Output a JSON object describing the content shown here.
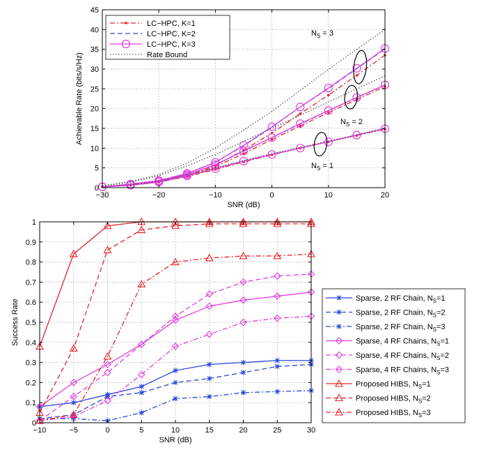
{
  "chart_data": [
    {
      "type": "line",
      "xlabel": "SNR (dB)",
      "ylabel": "Achievable Rate (bits/s/Hz)",
      "xlim": [
        -30,
        20
      ],
      "ylim": [
        0,
        45
      ],
      "xticks": [
        -30,
        -20,
        -10,
        0,
        10,
        20
      ],
      "yticks": [
        0,
        5,
        10,
        15,
        20,
        25,
        30,
        35,
        40,
        45
      ],
      "grid": true,
      "legend_position": "top-left",
      "annotations": [
        {
          "base": "N",
          "sub": "S",
          "rest": " = 3"
        },
        {
          "base": "N",
          "sub": "S",
          "rest": " = 2"
        },
        {
          "base": "N",
          "sub": "S",
          "rest": " = 1"
        }
      ],
      "x": [
        -30,
        -25,
        -20,
        -15,
        -10,
        -5,
        0,
        5,
        10,
        15,
        20
      ],
      "series": [
        {
          "name": "LC−HPC, K=1",
          "color": "#e8202a",
          "dash": "7,3,2,3",
          "marker": "dot",
          "group": "Ns1",
          "values": [
            0.2,
            0.6,
            1.4,
            2.8,
            4.6,
            6.5,
            8.3,
            10.0,
            11.6,
            13.2,
            14.8
          ]
        },
        {
          "name": "LC−HPC, K=1",
          "color": "#e8202a",
          "dash": "7,3,2,3",
          "marker": "dot",
          "group": "Ns2",
          "values": [
            0.2,
            0.8,
            1.6,
            3.0,
            5.3,
            8.6,
            12.2,
            15.6,
            19.0,
            22.3,
            25.6
          ]
        },
        {
          "name": "LC−HPC, K=1",
          "color": "#e8202a",
          "dash": "7,3,2,3",
          "marker": "dot",
          "group": "Ns3",
          "values": [
            0.2,
            0.8,
            1.7,
            3.3,
            5.6,
            9.5,
            13.8,
            18.7,
            23.4,
            28.4,
            33.5
          ]
        },
        {
          "name": "LC−HPC, K=2",
          "color": "#2a48d6",
          "dash": "7,4",
          "marker": "none",
          "group": "Ns1",
          "values": [
            0.2,
            0.6,
            1.4,
            3.0,
            4.8,
            6.7,
            8.4,
            10.0,
            11.6,
            13.3,
            14.9
          ]
        },
        {
          "name": "LC−HPC, K=2",
          "color": "#2a48d6",
          "dash": "7,4",
          "marker": "none",
          "group": "Ns2",
          "values": [
            0.2,
            0.9,
            1.7,
            3.3,
            5.8,
            9.2,
            12.7,
            16.1,
            19.5,
            22.8,
            26.0
          ]
        },
        {
          "name": "LC−HPC, K=2",
          "color": "#2a48d6",
          "dash": "7,4",
          "marker": "none",
          "group": "Ns3",
          "values": [
            0.2,
            0.9,
            1.8,
            3.6,
            6.4,
            10.6,
            15.3,
            20.4,
            25.1,
            30.1,
            35.1
          ]
        },
        {
          "name": "LC−HPC, K=3",
          "color": "#e23ce0",
          "dash": "",
          "marker": "circle",
          "group": "Ns1",
          "values": [
            0.2,
            0.6,
            1.4,
            3.0,
            4.8,
            6.7,
            8.4,
            10.0,
            11.6,
            13.3,
            14.9
          ]
        },
        {
          "name": "LC−HPC, K=3",
          "color": "#e23ce0",
          "dash": "",
          "marker": "circle",
          "group": "Ns2",
          "values": [
            0.2,
            0.9,
            1.7,
            3.3,
            5.8,
            9.3,
            12.7,
            16.2,
            19.5,
            22.8,
            26.0
          ]
        },
        {
          "name": "LC−HPC, K=3",
          "color": "#e23ce0",
          "dash": "",
          "marker": "circle",
          "group": "Ns3",
          "values": [
            0.2,
            0.9,
            1.8,
            3.6,
            6.4,
            10.7,
            15.4,
            20.4,
            25.2,
            30.2,
            35.2
          ]
        },
        {
          "name": "Rate Bound",
          "color": "#555555",
          "dash": "1.5,2.5",
          "marker": "none",
          "group": "Ns1",
          "values": [
            0.3,
            0.7,
            1.6,
            3.2,
            5.0,
            6.9,
            8.6,
            10.2,
            11.8,
            13.4,
            15.1
          ]
        },
        {
          "name": "Rate Bound",
          "color": "#555555",
          "dash": "1.5,2.5",
          "marker": "none",
          "group": "Ns2",
          "values": [
            0.4,
            1.4,
            3.0,
            5.5,
            8.4,
            11.7,
            15.0,
            18.3,
            21.7,
            25.0,
            28.3
          ]
        },
        {
          "name": "Rate Bound",
          "color": "#555555",
          "dash": "1.5,2.5",
          "marker": "none",
          "group": "Ns3",
          "values": [
            0.5,
            1.6,
            3.3,
            6.2,
            10.0,
            14.6,
            19.3,
            24.6,
            29.9,
            35.0,
            40.0
          ]
        }
      ]
    },
    {
      "type": "line",
      "xlabel": "SNR (dB)",
      "ylabel": "Success Rate",
      "xlim": [
        -10,
        30
      ],
      "ylim": [
        0,
        1
      ],
      "xticks": [
        -10,
        -5,
        0,
        5,
        10,
        15,
        20,
        25,
        30
      ],
      "yticks": [
        0,
        0.1,
        0.2,
        0.3,
        0.4,
        0.5,
        0.6,
        0.7,
        0.8,
        0.9,
        1
      ],
      "grid": true,
      "legend_position": "right",
      "x": [
        -10,
        -5,
        0,
        5,
        10,
        15,
        20,
        25,
        30
      ],
      "series": [
        {
          "name": "Sparse, 2 RF Chain, N",
          "sub": "S",
          "suffix": "=1",
          "color": "#2a48d6",
          "dash": "",
          "marker": "star",
          "values": [
            0.08,
            0.1,
            0.14,
            0.18,
            0.26,
            0.29,
            0.3,
            0.31,
            0.31
          ]
        },
        {
          "name": "Sparse, 2 RF Chain, N",
          "sub": "S",
          "suffix": "=2",
          "color": "#2a48d6",
          "dash": "7,4",
          "marker": "star",
          "values": [
            0.02,
            0.04,
            0.13,
            0.15,
            0.2,
            0.22,
            0.25,
            0.28,
            0.29
          ]
        },
        {
          "name": "Sparse, 2 RF Chain, N",
          "sub": "S",
          "suffix": "=3",
          "color": "#2a48d6",
          "dash": "7,3,2,3",
          "marker": "star",
          "values": [
            0.02,
            0.02,
            0.01,
            0.05,
            0.12,
            0.13,
            0.15,
            0.155,
            0.16
          ]
        },
        {
          "name": "Sparse, 4 RF Chains, N",
          "sub": "S",
          "suffix": "=1",
          "color": "#e23ce0",
          "dash": "",
          "marker": "diamond",
          "values": [
            0.08,
            0.2,
            0.29,
            0.39,
            0.51,
            0.58,
            0.61,
            0.63,
            0.65
          ]
        },
        {
          "name": "Sparse, 4 RF Chains, N",
          "sub": "S",
          "suffix": "=2",
          "color": "#e23ce0",
          "dash": "7,4",
          "marker": "diamond",
          "values": [
            0.01,
            0.13,
            0.25,
            0.39,
            0.53,
            0.64,
            0.7,
            0.73,
            0.74
          ]
        },
        {
          "name": "Sparse, 4 RF Chains, N",
          "sub": "S",
          "suffix": "=3",
          "color": "#e23ce0",
          "dash": "7,3,2,3",
          "marker": "diamond",
          "values": [
            0.01,
            0.03,
            0.11,
            0.24,
            0.38,
            0.44,
            0.5,
            0.52,
            0.53
          ]
        },
        {
          "name": "Proposed HIBS, N",
          "sub": "S",
          "suffix": "=1",
          "color": "#e8202a",
          "dash": "",
          "marker": "triangle",
          "values": [
            0.38,
            0.84,
            0.98,
            1.0,
            1.0,
            1.0,
            1.0,
            1.0,
            1.0
          ]
        },
        {
          "name": "Proposed HIBS, N",
          "sub": "S",
          "suffix": "=2",
          "color": "#e8202a",
          "dash": "7,4",
          "marker": "triangle",
          "values": [
            0.05,
            0.37,
            0.86,
            0.96,
            0.98,
            0.99,
            0.99,
            0.99,
            0.99
          ]
        },
        {
          "name": "Proposed HIBS, N",
          "sub": "S",
          "suffix": "=3",
          "color": "#e8202a",
          "dash": "7,3,2,3",
          "marker": "triangle",
          "values": [
            0.01,
            0.04,
            0.33,
            0.69,
            0.8,
            0.82,
            0.83,
            0.83,
            0.84
          ]
        }
      ]
    }
  ]
}
